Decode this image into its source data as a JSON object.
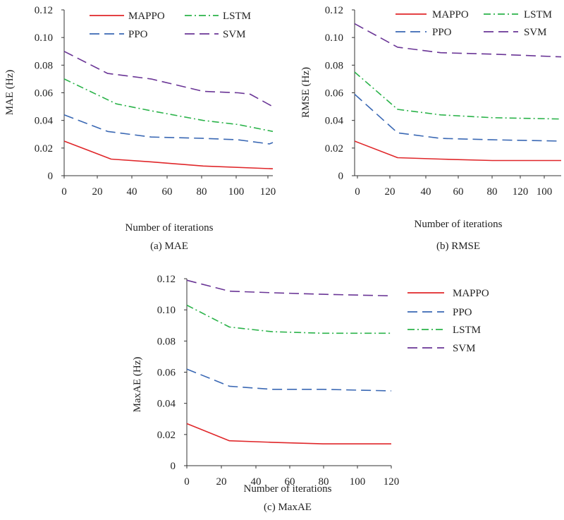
{
  "figure": {
    "colors": {
      "MAPPO": "#e0272a",
      "PPO": "#3a68b4",
      "LSTM": "#2bb34a",
      "SVM": "#6a3596",
      "axis": "#333333"
    },
    "line_styles": {
      "MAPPO": "solid",
      "PPO": "long-dash",
      "LSTM": "dash-dot",
      "SVM": "long-dash"
    }
  },
  "chart_data": [
    {
      "id": "a",
      "type": "line",
      "caption": "(a) MAE",
      "xlabel": "Number of iterations",
      "ylabel": "MAE (Hz)",
      "xlim": [
        0,
        120
      ],
      "ylim": [
        0,
        0.12
      ],
      "x_ticks": [
        "0",
        "20",
        "40",
        "60",
        "80",
        "100",
        "120"
      ],
      "y_ticks": [
        "0",
        "0.02",
        "0.04",
        "0.06",
        "0.08",
        "0.10",
        "0.12"
      ],
      "grid": false,
      "legend_position": "top",
      "series": [
        {
          "name": "MAPPO",
          "x": [
            0,
            27,
            50,
            80,
            120
          ],
          "y": [
            0.025,
            0.012,
            0.01,
            0.007,
            0.005
          ]
        },
        {
          "name": "PPO",
          "x": [
            0,
            25,
            50,
            80,
            100,
            118,
            120
          ],
          "y": [
            0.044,
            0.032,
            0.028,
            0.027,
            0.026,
            0.023,
            0.024
          ]
        },
        {
          "name": "LSTM",
          "x": [
            0,
            30,
            50,
            80,
            100,
            120
          ],
          "y": [
            0.07,
            0.052,
            0.047,
            0.04,
            0.037,
            0.032
          ]
        },
        {
          "name": "SVM",
          "x": [
            0,
            25,
            50,
            80,
            100,
            107,
            120
          ],
          "y": [
            0.09,
            0.074,
            0.07,
            0.061,
            0.06,
            0.059,
            0.05
          ]
        }
      ]
    },
    {
      "id": "b",
      "type": "line",
      "caption": "(b) RMSE",
      "xlabel": "Number of iterations",
      "ylabel": "RMSE (Hz)",
      "xlim": [
        0,
        120
      ],
      "ylim": [
        0,
        0.12
      ],
      "x_ticks": [
        "0",
        "20",
        "40",
        "60",
        "80",
        "120",
        "100"
      ],
      "y_ticks": [
        "0",
        "0.02",
        "0.04",
        "0.06",
        "0.08",
        "0.10",
        "0.12"
      ],
      "grid": false,
      "legend_position": "top",
      "series": [
        {
          "name": "MAPPO",
          "x": [
            0,
            25,
            50,
            80,
            120
          ],
          "y": [
            0.025,
            0.013,
            0.012,
            0.011,
            0.011
          ]
        },
        {
          "name": "PPO",
          "x": [
            0,
            25,
            50,
            80,
            120
          ],
          "y": [
            0.059,
            0.031,
            0.027,
            0.026,
            0.025
          ]
        },
        {
          "name": "LSTM",
          "x": [
            0,
            25,
            50,
            80,
            120
          ],
          "y": [
            0.075,
            0.048,
            0.044,
            0.042,
            0.041
          ]
        },
        {
          "name": "SVM",
          "x": [
            0,
            25,
            50,
            80,
            120
          ],
          "y": [
            0.11,
            0.093,
            0.089,
            0.088,
            0.086
          ]
        }
      ]
    },
    {
      "id": "c",
      "type": "line",
      "caption": "(c) MaxAE",
      "xlabel": "Number of iterations",
      "ylabel": "MaxAE (Hz)",
      "xlim": [
        0,
        120
      ],
      "ylim": [
        0,
        0.12
      ],
      "x_ticks": [
        "0",
        "20",
        "40",
        "60",
        "80",
        "100",
        "120"
      ],
      "y_ticks": [
        "0",
        "0.02",
        "0.04",
        "0.06",
        "0.08",
        "0.10",
        "0.12"
      ],
      "grid": false,
      "legend_position": "right",
      "series": [
        {
          "name": "MAPPO",
          "x": [
            0,
            25,
            50,
            80,
            120
          ],
          "y": [
            0.027,
            0.016,
            0.015,
            0.014,
            0.014
          ]
        },
        {
          "name": "PPO",
          "x": [
            0,
            25,
            50,
            80,
            120
          ],
          "y": [
            0.062,
            0.051,
            0.049,
            0.049,
            0.048
          ]
        },
        {
          "name": "LSTM",
          "x": [
            0,
            25,
            50,
            80,
            120
          ],
          "y": [
            0.103,
            0.089,
            0.086,
            0.085,
            0.085
          ]
        },
        {
          "name": "SVM",
          "x": [
            0,
            25,
            50,
            80,
            120
          ],
          "y": [
            0.119,
            0.112,
            0.111,
            0.11,
            0.109
          ]
        }
      ]
    }
  ]
}
